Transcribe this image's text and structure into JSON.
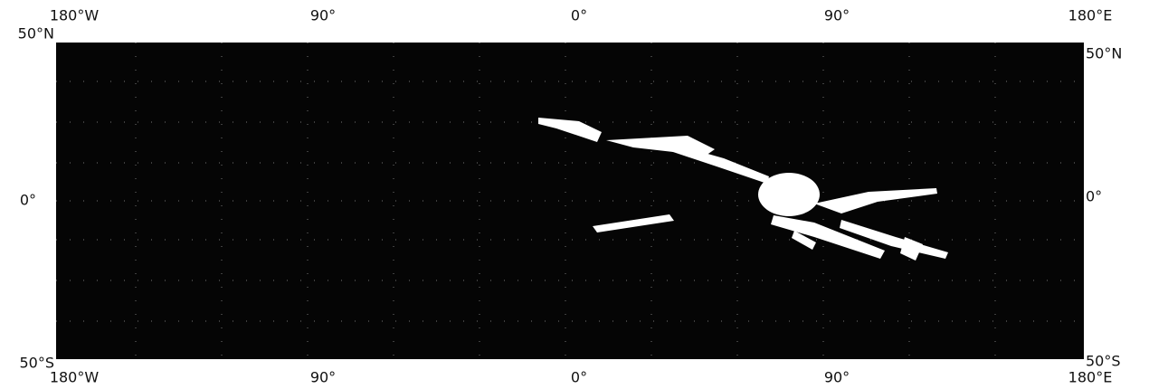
{
  "map": {
    "top_labels": [
      "180°W",
      "90°",
      "0°",
      "90°",
      "180°E"
    ],
    "bottom_labels": [
      "180°W",
      "90°",
      "0°",
      "90°",
      "180°E"
    ],
    "left_labels": [
      "50°N",
      "0°",
      "50°S"
    ],
    "right_labels": [
      "50°N",
      "0°",
      "50°S"
    ]
  }
}
